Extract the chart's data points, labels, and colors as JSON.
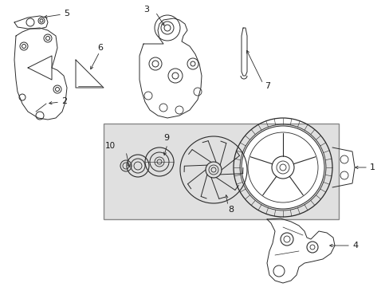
{
  "bg_color": "#ffffff",
  "line_color": "#2a2a2a",
  "label_color": "#1a1a1a",
  "box_bg": "#e0e0e0",
  "figsize": [
    4.89,
    3.6
  ],
  "dpi": 100,
  "xlim": [
    0,
    489
  ],
  "ylim": [
    0,
    360
  ]
}
